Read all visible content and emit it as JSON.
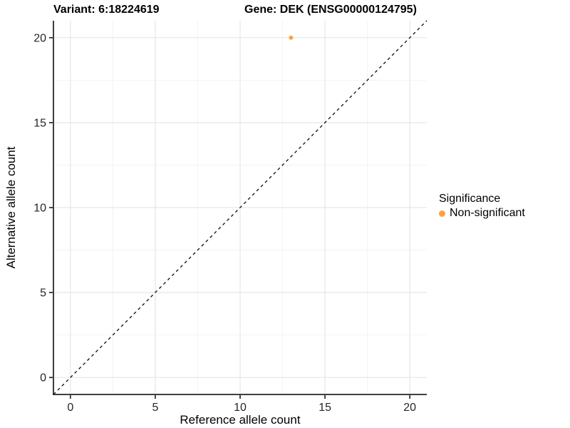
{
  "titles": {
    "variant": "Variant: 6:18224619",
    "gene": "Gene: DEK (ENSG00000124795)"
  },
  "legend": {
    "title": "Significance",
    "items": [
      {
        "label": "Non-significant",
        "color": "#FBA33C"
      }
    ]
  },
  "chart_data": {
    "type": "scatter",
    "title": "Variant: 6:18224619  /  Gene: DEK (ENSG00000124795)",
    "xlabel": "Reference allele count",
    "ylabel": "Alternative allele count",
    "xlim": [
      -1,
      21
    ],
    "ylim": [
      -1,
      21
    ],
    "x_ticks": [
      0,
      5,
      10,
      15,
      20
    ],
    "y_ticks": [
      0,
      5,
      10,
      15,
      20
    ],
    "grid": true,
    "legend_position": "right",
    "series": [
      {
        "name": "Non-significant",
        "color": "#FBA33C",
        "points": [
          {
            "x": 13,
            "y": 20
          }
        ]
      }
    ],
    "reference_line": {
      "type": "identity",
      "style": "dashed",
      "from": [
        -1,
        -1
      ],
      "to": [
        21,
        21
      ],
      "color": "#0a0a0a"
    }
  },
  "style_colors": {
    "background": "#ffffff",
    "major_grid": "#e6e6e6",
    "minor_grid": "#f1f1f1",
    "axis_line": "#3f3f3f",
    "tick": "#333333",
    "tick_label": "#262626",
    "axis_title": "#000000"
  }
}
